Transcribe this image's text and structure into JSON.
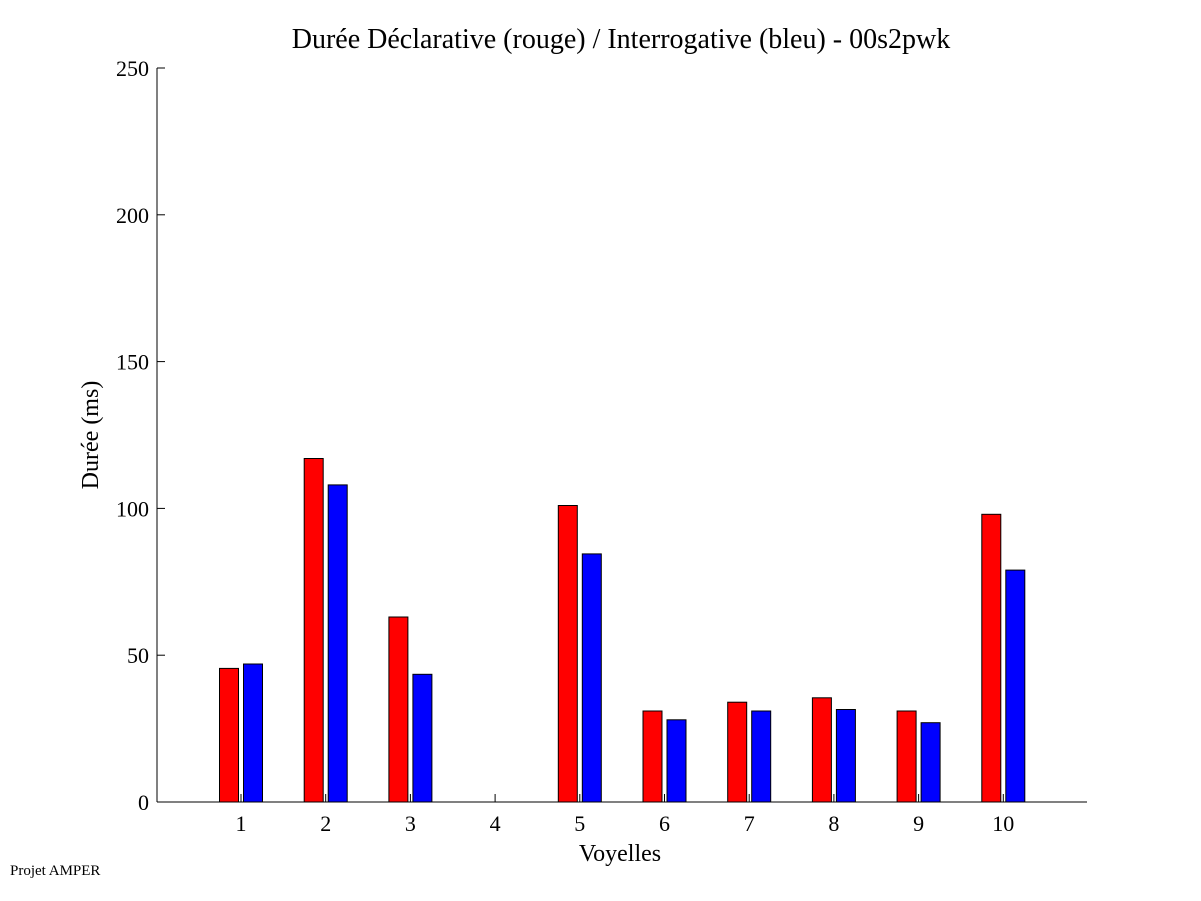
{
  "chart_data": {
    "type": "bar",
    "title": "Durée Déclarative (rouge) / Interrogative (bleu) - 00s2pwk",
    "xlabel": "Voyelles",
    "ylabel": "Durée (ms)",
    "categories": [
      "1",
      "2",
      "3",
      "4",
      "5",
      "6",
      "7",
      "8",
      "9",
      "10"
    ],
    "ylim": [
      0,
      250
    ],
    "yticks": [
      0,
      50,
      100,
      150,
      200,
      250
    ],
    "grid": false,
    "legend": "none",
    "series": [
      {
        "color": "#ff0000",
        "values": [
          45.5,
          117,
          63,
          0,
          101,
          31,
          34,
          35.5,
          31,
          98
        ]
      },
      {
        "color": "#0000ff",
        "values": [
          47,
          108,
          43.5,
          0,
          84.5,
          28,
          31,
          31.5,
          27,
          79
        ]
      }
    ]
  },
  "footer": {
    "note": "Projet AMPER"
  }
}
